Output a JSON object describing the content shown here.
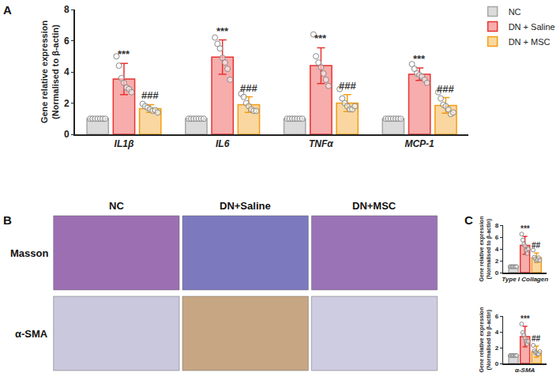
{
  "chart_data": [
    {
      "type": "bar",
      "categories": [
        "IL1β",
        "IL6",
        "TNFα",
        "MCP-1"
      ],
      "ylabel": [
        "Gene relative expression",
        "(Normalised to β-actin)"
      ],
      "ylim": [
        0,
        8
      ],
      "yticks": [
        0,
        2,
        4,
        6,
        8
      ],
      "grid": false,
      "legend": "top right",
      "series": [
        {
          "name": "NC",
          "color": "#a6a6a6",
          "values": [
            1,
            1,
            1,
            1
          ],
          "points": [
            [
              1,
              1,
              1,
              1,
              1,
              1,
              1
            ],
            [
              1,
              1,
              1,
              1,
              1,
              1,
              1
            ],
            [
              1,
              1,
              1,
              1,
              1,
              1,
              1
            ],
            [
              1,
              1,
              1,
              1,
              1,
              1,
              1
            ]
          ]
        },
        {
          "name": "DN + Saline",
          "color": "#e8322f",
          "values": [
            3.55,
            4.95,
            4.4,
            3.85
          ],
          "errors": [
            1.0,
            1.1,
            1.15,
            0.4
          ],
          "points": [
            [
              5.0,
              4.4,
              3.6,
              3.3,
              3.0,
              2.9,
              2.7
            ],
            [
              6.2,
              5.8,
              5.5,
              4.9,
              4.6,
              4.2,
              3.5
            ],
            [
              6.4,
              5.0,
              4.6,
              4.3,
              3.9,
              3.5,
              3.1
            ],
            [
              4.5,
              4.2,
              3.9,
              3.8,
              3.7,
              3.5,
              3.3
            ]
          ],
          "significance": [
            "***",
            "***",
            "***",
            "***"
          ]
        },
        {
          "name": "DN + MSC",
          "color": "#f39c12",
          "values": [
            1.65,
            1.9,
            2.0,
            1.85
          ],
          "errors": [
            0.25,
            0.5,
            0.55,
            0.5
          ],
          "points": [
            [
              1.95,
              1.8,
              1.7,
              1.6,
              1.5,
              1.55,
              1.4
            ],
            [
              2.6,
              2.4,
              2.0,
              1.8,
              1.6,
              1.5,
              1.5
            ],
            [
              2.9,
              2.3,
              2.0,
              1.8,
              1.6,
              1.6,
              1.8
            ],
            [
              2.7,
              2.3,
              1.9,
              1.8,
              1.6,
              1.3,
              1.4
            ]
          ],
          "significance": [
            "###",
            "###",
            "###",
            "###"
          ]
        }
      ]
    },
    {
      "type": "bar",
      "categories": [
        "Type I Collagen"
      ],
      "ylabel": [
        "Gene relative expression",
        "(Normalised to β-actin)"
      ],
      "ylim": [
        0,
        8
      ],
      "yticks": [
        0,
        2,
        4,
        6,
        8
      ],
      "grid": false,
      "series": [
        {
          "name": "NC",
          "color": "#a6a6a6",
          "values": [
            1
          ],
          "points": [
            [
              1,
              1,
              1,
              1,
              1,
              1,
              1
            ]
          ]
        },
        {
          "name": "DN + Saline",
          "color": "#e8322f",
          "values": [
            4.6
          ],
          "errors": [
            1.5
          ],
          "points": [
            [
              6.5,
              5.5,
              4.8,
              4.5,
              3.8,
              3.2,
              4.0
            ]
          ],
          "significance": [
            "***"
          ]
        },
        {
          "name": "DN + MSC",
          "color": "#f39c12",
          "values": [
            2.5
          ],
          "errors": [
            0.8
          ],
          "points": [
            [
              3.8,
              2.6,
              2.3,
              2.0,
              2.2,
              2.5,
              2.1
            ]
          ],
          "significance": [
            "##"
          ]
        }
      ]
    },
    {
      "type": "bar",
      "categories": [
        "α-SMA"
      ],
      "ylabel": [
        "Gene relative expression",
        "(Normalised to β-actin)"
      ],
      "ylim": [
        0,
        6
      ],
      "yticks": [
        0,
        2,
        4,
        6
      ],
      "grid": false,
      "series": [
        {
          "name": "NC",
          "color": "#a6a6a6",
          "values": [
            1
          ],
          "points": [
            [
              1,
              1,
              1,
              1,
              1,
              1,
              1
            ]
          ]
        },
        {
          "name": "DN + Saline",
          "color": "#e8322f",
          "values": [
            3.4
          ],
          "errors": [
            1.3
          ],
          "points": [
            [
              5.0,
              3.9,
              3.6,
              3.2,
              2.8,
              2.5,
              2.8
            ]
          ],
          "significance": [
            "***"
          ]
        },
        {
          "name": "DN + MSC",
          "color": "#f39c12",
          "values": [
            1.5
          ],
          "errors": [
            0.7
          ],
          "points": [
            [
              2.3,
              1.6,
              1.4,
              1.3,
              1.2,
              1.2,
              1.5
            ]
          ],
          "significance": [
            "##"
          ]
        }
      ]
    }
  ],
  "panel_labels": [
    "A",
    "B",
    "C"
  ],
  "micrographs": {
    "columns": [
      "NC",
      "DN+Saline",
      "DN+MSC"
    ],
    "rows": [
      "Masson",
      "α-SMA"
    ]
  }
}
